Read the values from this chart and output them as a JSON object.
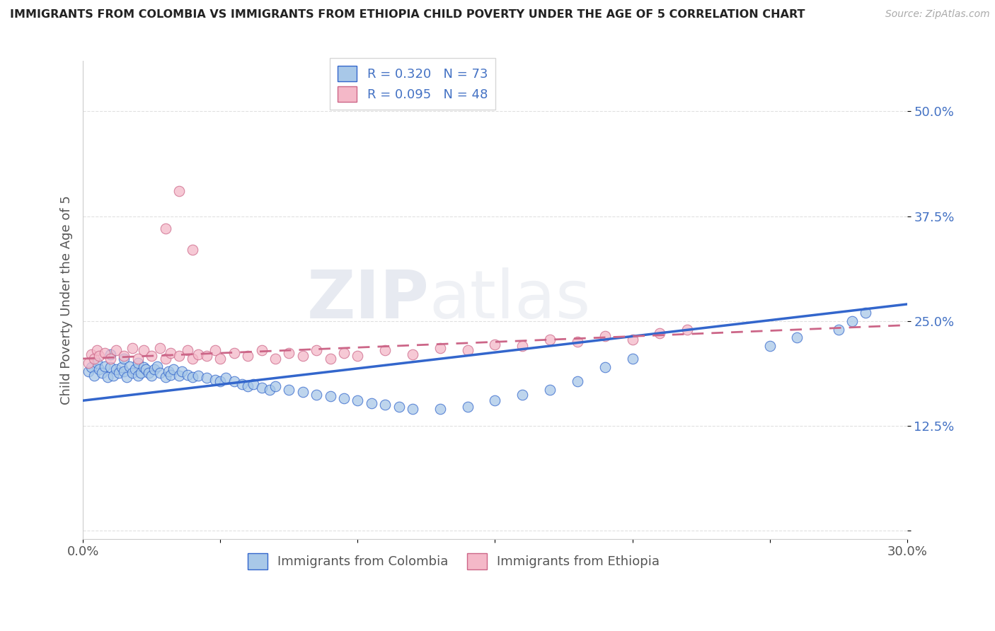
{
  "title": "IMMIGRANTS FROM COLOMBIA VS IMMIGRANTS FROM ETHIOPIA CHILD POVERTY UNDER THE AGE OF 5 CORRELATION CHART",
  "source": "Source: ZipAtlas.com",
  "ylabel": "Child Poverty Under the Age of 5",
  "xlabel": "",
  "xlim": [
    0.0,
    0.3
  ],
  "ylim": [
    0.0,
    0.55
  ],
  "xticks": [
    0.0,
    0.05,
    0.1,
    0.15,
    0.2,
    0.25,
    0.3
  ],
  "xticklabels": [
    "0.0%",
    "",
    "",
    "",
    "",
    "",
    "30.0%"
  ],
  "yticks": [
    0.0,
    0.125,
    0.25,
    0.375,
    0.5
  ],
  "yticklabels": [
    "",
    "12.5%",
    "25.0%",
    "37.5%",
    "50.0%"
  ],
  "R_colombia": 0.32,
  "N_colombia": 73,
  "R_ethiopia": 0.095,
  "N_ethiopia": 48,
  "color_colombia": "#a8c8e8",
  "color_ethiopia": "#f4b8c8",
  "line_color_colombia": "#3366cc",
  "line_color_ethiopia": "#cc6688",
  "watermark": "ZIPatlas",
  "legend_label_colombia": "Immigrants from Colombia",
  "legend_label_ethiopia": "Immigrants from Ethiopia",
  "colombia_x": [
    0.002,
    0.003,
    0.004,
    0.005,
    0.006,
    0.007,
    0.008,
    0.009,
    0.01,
    0.01,
    0.011,
    0.012,
    0.013,
    0.014,
    0.015,
    0.015,
    0.016,
    0.017,
    0.018,
    0.019,
    0.02,
    0.02,
    0.021,
    0.022,
    0.023,
    0.024,
    0.025,
    0.026,
    0.027,
    0.028,
    0.03,
    0.031,
    0.032,
    0.033,
    0.035,
    0.036,
    0.038,
    0.04,
    0.042,
    0.045,
    0.048,
    0.05,
    0.052,
    0.055,
    0.058,
    0.06,
    0.062,
    0.065,
    0.068,
    0.07,
    0.075,
    0.08,
    0.085,
    0.09,
    0.095,
    0.1,
    0.105,
    0.11,
    0.115,
    0.12,
    0.13,
    0.14,
    0.15,
    0.16,
    0.17,
    0.18,
    0.19,
    0.2,
    0.25,
    0.26,
    0.275,
    0.28,
    0.285
  ],
  "colombia_y": [
    0.19,
    0.195,
    0.185,
    0.2,
    0.192,
    0.188,
    0.196,
    0.183,
    0.195,
    0.21,
    0.185,
    0.192,
    0.188,
    0.195,
    0.19,
    0.205,
    0.183,
    0.196,
    0.188,
    0.192,
    0.185,
    0.2,
    0.188,
    0.195,
    0.192,
    0.188,
    0.185,
    0.192,
    0.196,
    0.188,
    0.183,
    0.19,
    0.186,
    0.192,
    0.185,
    0.19,
    0.186,
    0.183,
    0.185,
    0.182,
    0.18,
    0.178,
    0.182,
    0.178,
    0.175,
    0.172,
    0.175,
    0.17,
    0.168,
    0.172,
    0.168,
    0.165,
    0.162,
    0.16,
    0.158,
    0.155,
    0.152,
    0.15,
    0.148,
    0.145,
    0.145,
    0.148,
    0.155,
    0.162,
    0.168,
    0.178,
    0.195,
    0.205,
    0.22,
    0.23,
    0.24,
    0.25,
    0.26
  ],
  "ethiopia_x": [
    0.002,
    0.003,
    0.004,
    0.005,
    0.006,
    0.008,
    0.01,
    0.012,
    0.015,
    0.018,
    0.02,
    0.022,
    0.025,
    0.028,
    0.03,
    0.032,
    0.035,
    0.038,
    0.04,
    0.042,
    0.045,
    0.048,
    0.05,
    0.055,
    0.06,
    0.065,
    0.07,
    0.075,
    0.08,
    0.085,
    0.09,
    0.095,
    0.1,
    0.11,
    0.12,
    0.13,
    0.14,
    0.15,
    0.16,
    0.17,
    0.18,
    0.19,
    0.2,
    0.21,
    0.22,
    0.03,
    0.035,
    0.04
  ],
  "ethiopia_y": [
    0.2,
    0.21,
    0.205,
    0.215,
    0.208,
    0.212,
    0.205,
    0.215,
    0.208,
    0.218,
    0.205,
    0.215,
    0.208,
    0.218,
    0.205,
    0.212,
    0.208,
    0.215,
    0.205,
    0.21,
    0.208,
    0.215,
    0.205,
    0.212,
    0.208,
    0.215,
    0.205,
    0.212,
    0.208,
    0.215,
    0.205,
    0.212,
    0.208,
    0.215,
    0.21,
    0.218,
    0.215,
    0.222,
    0.22,
    0.228,
    0.225,
    0.232,
    0.228,
    0.235,
    0.24,
    0.36,
    0.405,
    0.335
  ],
  "background_color": "#ffffff",
  "grid_color": "#dddddd"
}
